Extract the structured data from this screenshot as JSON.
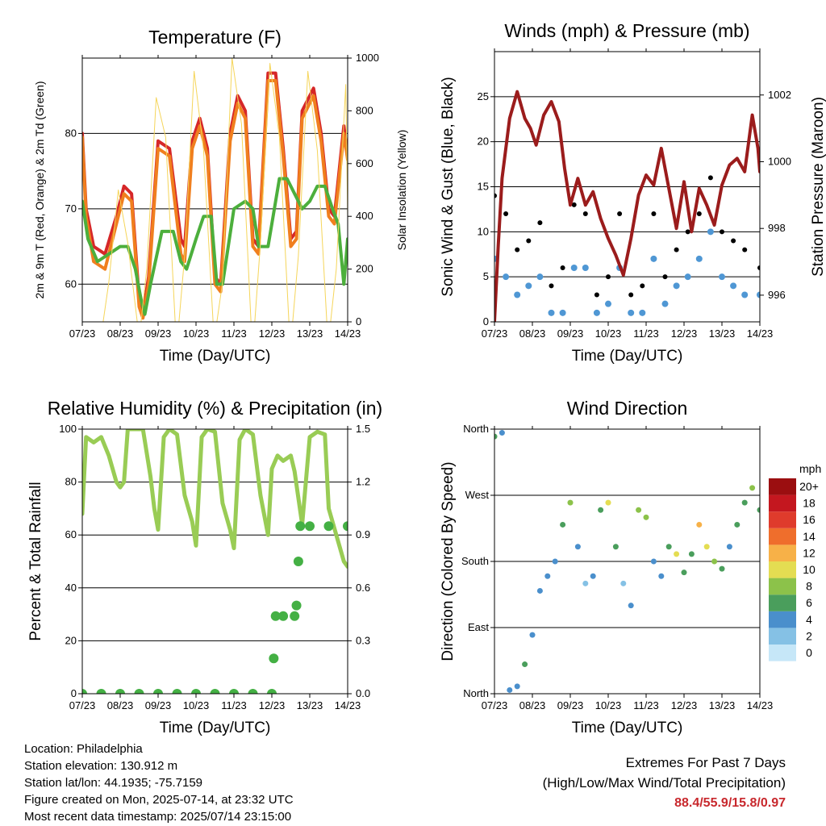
{
  "time_ticks": [
    "07/23",
    "08/23",
    "09/23",
    "10/23",
    "11/23",
    "12/23",
    "13/23",
    "14/23"
  ],
  "info": {
    "location": "Location: Philadelphia",
    "elevation": "Station elevation: 130.912 m",
    "latlon": "Station lat/lon: 44.1935; -75.7159",
    "created": "Figure created on Mon, 2025-07-14, at 23:32 UTC",
    "recent": "Most recent data timestamp: 2025/07/14 23:15:00"
  },
  "extremes": {
    "title": "Extremes For Past 7 Days",
    "subtitle": "(High/Low/Max Wind/Total Precipitation)",
    "values": "88.4/55.9/15.8/0.97"
  },
  "colors": {
    "temp_red": "#d62728",
    "temp_orange": "#f07f1e",
    "dewpoint_green": "#4caf3c",
    "solar_yellow": "#f5d55a",
    "wind_blue": "#4f97d4",
    "gust_black": "#000000",
    "pressure_maroon": "#9b1c1c",
    "rh_green": "#99cc55",
    "precip_green": "#44b044"
  },
  "chart_data": [
    {
      "id": "temperature",
      "type": "line",
      "title": "Temperature (F)",
      "xlabel": "Time (Day/UTC)",
      "ylabel": "2m & 9m T (Red, Orange) & 2m Td (Green)",
      "ylabel_right": "Solar Insolation (Yellow)",
      "xlim": [
        0,
        7
      ],
      "ylim": [
        55,
        90
      ],
      "yticks": [
        60,
        70,
        80
      ],
      "ylim_right": [
        0,
        1000
      ],
      "yticks_right": [
        0,
        200,
        400,
        600,
        800,
        1000
      ],
      "grid": true,
      "series": [
        {
          "color": "#d62728",
          "x": [
            0,
            0.1,
            0.3,
            0.6,
            0.9,
            1.1,
            1.3,
            1.5,
            1.6,
            1.75,
            2.0,
            2.3,
            2.6,
            2.7,
            2.9,
            3.1,
            3.3,
            3.5,
            3.65,
            3.9,
            4.1,
            4.3,
            4.5,
            4.65,
            4.9,
            5.1,
            5.3,
            5.5,
            5.65,
            5.8,
            6.1,
            6.3,
            6.5,
            6.65,
            6.9,
            7.0
          ],
          "y": [
            80,
            70,
            65,
            64,
            69,
            73,
            72,
            58,
            56,
            61,
            79,
            78,
            66,
            65,
            79,
            82,
            78,
            61,
            60,
            80,
            85,
            83,
            66,
            65,
            88,
            88,
            78,
            66,
            67,
            83,
            86,
            80,
            70,
            69,
            81,
            77
          ]
        },
        {
          "color": "#f07f1e",
          "x": [
            0,
            0.1,
            0.3,
            0.6,
            0.9,
            1.1,
            1.3,
            1.5,
            1.6,
            1.75,
            2.0,
            2.3,
            2.6,
            2.7,
            2.9,
            3.1,
            3.3,
            3.5,
            3.65,
            3.9,
            4.1,
            4.3,
            4.5,
            4.65,
            4.9,
            5.1,
            5.3,
            5.5,
            5.65,
            5.8,
            6.1,
            6.3,
            6.5,
            6.65,
            6.9,
            7.0
          ],
          "y": [
            79.5,
            69,
            63,
            62,
            68,
            72,
            71,
            57,
            55.5,
            60,
            78,
            77,
            64,
            63,
            78,
            81,
            77,
            60,
            59,
            79,
            84,
            82,
            65,
            64,
            87,
            87,
            77,
            65,
            66,
            82,
            85,
            79,
            69,
            68,
            80,
            76.5
          ]
        },
        {
          "color": "#4caf3c",
          "x": [
            0,
            0.15,
            0.4,
            0.7,
            1.0,
            1.2,
            1.4,
            1.55,
            1.65,
            1.8,
            2.1,
            2.4,
            2.6,
            2.75,
            3.0,
            3.2,
            3.4,
            3.55,
            3.7,
            4.0,
            4.3,
            4.5,
            4.65,
            4.9,
            5.2,
            5.4,
            5.6,
            5.8,
            6.0,
            6.2,
            6.4,
            6.6,
            6.75,
            6.9,
            7.0
          ],
          "y": [
            71,
            66,
            63,
            64,
            65,
            65,
            62,
            58,
            56,
            60,
            67,
            67,
            63,
            62,
            66,
            69,
            69,
            60,
            60,
            70,
            71,
            70,
            65,
            65,
            74,
            74,
            72,
            70,
            71,
            73,
            73,
            70,
            68,
            60,
            66
          ]
        },
        {
          "color": "#f5d55a",
          "axis": "right",
          "x": [
            0,
            0.45,
            0.55,
            0.7,
            0.95,
            1.2,
            1.45,
            1.55,
            1.7,
            1.95,
            2.2,
            2.45,
            2.55,
            2.7,
            2.95,
            3.2,
            3.45,
            3.55,
            3.7,
            3.95,
            4.2,
            4.45,
            4.55,
            4.7,
            4.95,
            5.2,
            5.45,
            5.55,
            5.7,
            5.95,
            6.2,
            6.45,
            6.55,
            6.7,
            6.95,
            7.0
          ],
          "y": [
            0,
            0,
            0,
            150,
            500,
            300,
            0,
            0,
            200,
            850,
            700,
            0,
            0,
            250,
            950,
            650,
            0,
            0,
            150,
            1000,
            750,
            0,
            0,
            300,
            980,
            700,
            0,
            0,
            250,
            950,
            650,
            0,
            0,
            200,
            900,
            400
          ]
        }
      ]
    },
    {
      "id": "winds",
      "type": "scatter",
      "title": "Winds (mph) & Pressure (mb)",
      "xlabel": "Time (Day/UTC)",
      "ylabel": "Sonic Wind & Gust (Blue, Black)",
      "ylabel_right": "Station Pressure (Maroon)",
      "xlim": [
        0,
        7
      ],
      "ylim": [
        0,
        30
      ],
      "yticks": [
        0,
        5,
        10,
        15,
        20,
        25
      ],
      "ylim_right": [
        995.2,
        1003.3
      ],
      "yticks_right": [
        996,
        998,
        1000,
        1002
      ],
      "grid": true,
      "series": [
        {
          "color": "#000000",
          "kind": "gust",
          "x": [
            0,
            0.3,
            0.6,
            0.9,
            1.2,
            1.5,
            1.8,
            2.1,
            2.4,
            2.7,
            3.0,
            3.3,
            3.6,
            3.9,
            4.2,
            4.5,
            4.8,
            5.1,
            5.4,
            5.7,
            6.0,
            6.3,
            6.6,
            7.0
          ],
          "y": [
            14,
            12,
            8,
            9,
            11,
            4,
            6,
            13,
            12,
            3,
            5,
            12,
            3,
            4,
            12,
            5,
            8,
            10,
            12,
            16,
            10,
            9,
            8,
            6
          ]
        },
        {
          "color": "#4f97d4",
          "kind": "wind",
          "x": [
            0,
            0.3,
            0.6,
            0.9,
            1.2,
            1.5,
            1.8,
            2.1,
            2.4,
            2.7,
            3.0,
            3.3,
            3.6,
            3.9,
            4.2,
            4.5,
            4.8,
            5.1,
            5.4,
            5.7,
            6.0,
            6.3,
            6.6,
            7.0
          ],
          "y": [
            7,
            5,
            3,
            4,
            5,
            1,
            1,
            6,
            6,
            1,
            2,
            6,
            1,
            1,
            7,
            2,
            4,
            5,
            7,
            10,
            5,
            4,
            3,
            3
          ]
        },
        {
          "color": "#9b1c1c",
          "axis": "right",
          "x": [
            0,
            0.1,
            0.2,
            0.4,
            0.6,
            0.8,
            0.95,
            1.1,
            1.3,
            1.5,
            1.7,
            1.85,
            2.0,
            2.2,
            2.4,
            2.6,
            2.8,
            3.0,
            3.2,
            3.4,
            3.6,
            3.8,
            4.0,
            4.2,
            4.4,
            4.6,
            4.8,
            5.0,
            5.2,
            5.4,
            5.6,
            5.8,
            6.0,
            6.2,
            6.4,
            6.6,
            6.8,
            6.95,
            7.0
          ],
          "y": [
            995.2,
            997.5,
            999.5,
            1001.3,
            1002.1,
            1001.3,
            1001.0,
            1000.5,
            1001.4,
            1001.8,
            1001.2,
            999.8,
            998.7,
            999.5,
            998.7,
            999.1,
            998.3,
            997.7,
            997.2,
            996.6,
            997.7,
            999.0,
            999.6,
            999.3,
            1000.4,
            999.2,
            998.0,
            999.4,
            997.9,
            999.2,
            998.7,
            998.1,
            999.3,
            999.9,
            1000.1,
            999.7,
            1001.4,
            1000.4,
            999.7
          ]
        }
      ]
    },
    {
      "id": "humidity",
      "type": "line",
      "title": "Relative Humidity (%) & Precipitation (in)",
      "xlabel": "Time (Day/UTC)",
      "ylabel": "Percent & Total Rainfall",
      "xlim": [
        0,
        7
      ],
      "ylim": [
        0,
        100
      ],
      "yticks": [
        0,
        20,
        40,
        60,
        80,
        100
      ],
      "ylim_right": [
        0,
        1.5
      ],
      "yticks_right": [
        "0.0",
        "0.3",
        "0.6",
        "0.9",
        "1.2",
        "1.5"
      ],
      "grid": true,
      "series": [
        {
          "color": "#99cc55",
          "x": [
            0,
            0.1,
            0.3,
            0.5,
            0.7,
            0.9,
            1.0,
            1.1,
            1.2,
            1.4,
            1.6,
            1.8,
            1.9,
            2.0,
            2.15,
            2.3,
            2.5,
            2.7,
            2.9,
            3.0,
            3.15,
            3.3,
            3.5,
            3.7,
            3.9,
            4.0,
            4.15,
            4.3,
            4.5,
            4.7,
            4.9,
            5.0,
            5.15,
            5.3,
            5.5,
            5.6,
            5.8,
            6.0,
            6.2,
            6.4,
            6.5,
            6.7,
            6.9,
            7.0
          ],
          "y": [
            68,
            97,
            95,
            97,
            90,
            80,
            78,
            80,
            100,
            100,
            100,
            82,
            70,
            62,
            97,
            100,
            98,
            75,
            65,
            56,
            97,
            100,
            99,
            72,
            62,
            55,
            96,
            100,
            98,
            75,
            60,
            85,
            90,
            88,
            90,
            84,
            64,
            97,
            99,
            98,
            70,
            60,
            50,
            48
          ]
        },
        {
          "color": "#44b044",
          "axis": "right",
          "x": [
            0,
            0.5,
            1.0,
            1.5,
            2.0,
            2.5,
            3.0,
            3.5,
            4.0,
            4.5,
            5.0,
            5.05,
            5.1,
            5.3,
            5.6,
            5.65,
            5.7,
            5.75,
            6.0,
            6.5,
            7.0
          ],
          "y": [
            0,
            0,
            0,
            0,
            0,
            0,
            0,
            0,
            0,
            0,
            0,
            0.2,
            0.44,
            0.44,
            0.44,
            0.5,
            0.75,
            0.95,
            0.95,
            0.95,
            0.95
          ]
        }
      ]
    },
    {
      "id": "direction",
      "type": "scatter",
      "title": "Wind Direction",
      "xlabel": "Time (Day/UTC)",
      "ylabel": "Direction (Colored By Speed)",
      "xlim": [
        0,
        7
      ],
      "ylim": [
        0,
        360
      ],
      "ytick_values": [
        0,
        90,
        180,
        270,
        360
      ],
      "ytick_labels": [
        "North",
        "East",
        "South",
        "West",
        "North"
      ],
      "grid": true,
      "legend_title": "mph",
      "legend_labels": [
        "0",
        "2",
        "4",
        "6",
        "8",
        "10",
        "12",
        "14",
        "16",
        "18",
        "20+"
      ],
      "legend_colors": [
        "#c6e7f8",
        "#85c1e5",
        "#4a8fcc",
        "#4a9e5c",
        "#8cc24a",
        "#e4dd52",
        "#f7b148",
        "#ef6e2c",
        "#df3b2c",
        "#c4171f",
        "#9b0e10"
      ],
      "series": [
        {
          "name": "",
          "x": [
            0,
            0.2,
            0.4,
            0.6,
            0.8,
            1.0,
            1.2,
            1.4,
            1.6,
            1.8,
            2.0,
            2.2,
            2.4,
            2.6,
            2.8,
            3.0,
            3.2,
            3.4,
            3.6,
            3.8,
            4.0,
            4.2,
            4.4,
            4.6,
            4.8,
            5.0,
            5.2,
            5.4,
            5.6,
            5.8,
            6.0,
            6.2,
            6.4,
            6.6,
            6.8,
            7.0
          ],
          "y": [
            350,
            355,
            5,
            10,
            40,
            80,
            140,
            160,
            180,
            230,
            260,
            200,
            150,
            160,
            250,
            260,
            200,
            150,
            120,
            250,
            240,
            180,
            160,
            200,
            190,
            165,
            190,
            230,
            200,
            180,
            170,
            200,
            230,
            260,
            280,
            250
          ],
          "speed": [
            6,
            4,
            3,
            4,
            5,
            4,
            3,
            3,
            4,
            6,
            8,
            4,
            2,
            4,
            6,
            9,
            5,
            2,
            3,
            8,
            8,
            4,
            3,
            5,
            9,
            6,
            6,
            12,
            10,
            8,
            5,
            4,
            5,
            6,
            7,
            6
          ]
        }
      ]
    }
  ]
}
